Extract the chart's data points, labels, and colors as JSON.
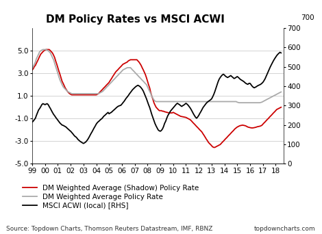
{
  "title": "DM Policy Rates vs MSCI ACWI",
  "source_text": "Source: Topdown Charts, Thomson Reuters Datastream, IMF, RBNZ",
  "watermark": "topdowncharts.com",
  "ylim_left": [
    -5.0,
    7.0
  ],
  "ylim_right": [
    0,
    700
  ],
  "yticks_left": [
    -5.0,
    -3.0,
    -1.0,
    1.0,
    3.0,
    5.0
  ],
  "yticks_right": [
    0,
    100,
    200,
    300,
    400,
    500,
    600,
    700
  ],
  "xtick_labels": [
    "99",
    "00",
    "01",
    "02",
    "03",
    "04",
    "05",
    "06",
    "07",
    "08",
    "09",
    "10",
    "11",
    "12",
    "13",
    "14",
    "15",
    "16",
    "17",
    "18"
  ],
  "legend": [
    {
      "label": "DM Weighted Average (Shadow) Policy Rate",
      "color": "#cc0000",
      "lw": 1.3
    },
    {
      "label": "DM Weighted Average Policy Rate",
      "color": "#aaaaaa",
      "lw": 1.3
    },
    {
      "label": "MSCI ACWI (local) [RHS]",
      "color": "#000000",
      "lw": 1.3
    }
  ],
  "background_color": "#ffffff",
  "grid_color": "#cccccc",
  "title_fontsize": 11,
  "tick_fontsize": 7.5,
  "legend_fontsize": 7.5,
  "source_fontsize": 6.5,
  "shadow_rate_x": [
    1999.0,
    1999.08,
    1999.17,
    1999.25,
    1999.33,
    1999.42,
    1999.5,
    1999.58,
    1999.67,
    1999.75,
    1999.83,
    1999.92,
    2000.0,
    2000.08,
    2000.17,
    2000.25,
    2000.33,
    2000.42,
    2000.5,
    2000.58,
    2000.67,
    2000.75,
    2000.83,
    2000.92,
    2001.0,
    2001.08,
    2001.17,
    2001.25,
    2001.33,
    2001.42,
    2001.5,
    2001.58,
    2001.67,
    2001.75,
    2001.83,
    2001.92,
    2002.0,
    2002.08,
    2002.17,
    2002.25,
    2002.33,
    2002.42,
    2002.5,
    2002.58,
    2002.67,
    2002.75,
    2002.83,
    2002.92,
    2003.0,
    2003.08,
    2003.17,
    2003.25,
    2003.33,
    2003.42,
    2003.5,
    2003.58,
    2003.67,
    2003.75,
    2003.83,
    2003.92,
    2004.0,
    2004.08,
    2004.17,
    2004.25,
    2004.33,
    2004.42,
    2004.5,
    2004.58,
    2004.67,
    2004.75,
    2004.83,
    2004.92,
    2005.0,
    2005.08,
    2005.17,
    2005.25,
    2005.33,
    2005.42,
    2005.5,
    2005.58,
    2005.67,
    2005.75,
    2005.83,
    2005.92,
    2006.0,
    2006.08,
    2006.17,
    2006.25,
    2006.33,
    2006.42,
    2006.5,
    2006.58,
    2006.67,
    2006.75,
    2006.83,
    2006.92,
    2007.0,
    2007.08,
    2007.17,
    2007.25,
    2007.33,
    2007.42,
    2007.5,
    2007.58,
    2007.67,
    2007.75,
    2007.83,
    2007.92,
    2008.0,
    2008.08,
    2008.17,
    2008.25,
    2008.33,
    2008.42,
    2008.5,
    2008.58,
    2008.67,
    2008.75,
    2008.83,
    2008.92,
    2009.0,
    2009.08,
    2009.17,
    2009.25,
    2009.33,
    2009.42,
    2009.5,
    2009.58,
    2009.67,
    2009.75,
    2009.83,
    2009.92,
    2010.0,
    2010.08,
    2010.17,
    2010.25,
    2010.33,
    2010.42,
    2010.5,
    2010.58,
    2010.67,
    2010.75,
    2010.83,
    2010.92,
    2011.0,
    2011.08,
    2011.17,
    2011.25,
    2011.33,
    2011.42,
    2011.5,
    2011.58,
    2011.67,
    2011.75,
    2011.83,
    2011.92,
    2012.0,
    2012.08,
    2012.17,
    2012.25,
    2012.33,
    2012.42,
    2012.5,
    2012.58,
    2012.67,
    2012.75,
    2012.83,
    2012.92,
    2013.0,
    2013.08,
    2013.17,
    2013.25,
    2013.33,
    2013.42,
    2013.5,
    2013.58,
    2013.67,
    2013.75,
    2013.83,
    2013.92,
    2014.0,
    2014.08,
    2014.17,
    2014.25,
    2014.33,
    2014.42,
    2014.5,
    2014.58,
    2014.67,
    2014.75,
    2014.83,
    2014.92,
    2015.0,
    2015.08,
    2015.17,
    2015.25,
    2015.33,
    2015.42,
    2015.5,
    2015.58,
    2015.67,
    2015.75,
    2015.83,
    2015.92,
    2016.0,
    2016.08,
    2016.17,
    2016.25,
    2016.33,
    2016.42,
    2016.5,
    2016.58,
    2016.67,
    2016.75,
    2016.83,
    2016.92,
    2017.0,
    2017.08,
    2017.17,
    2017.25,
    2017.33,
    2017.42,
    2017.5,
    2017.58,
    2017.67,
    2017.75,
    2017.83,
    2017.92,
    2018.0,
    2018.08,
    2018.17,
    2018.25,
    2018.33,
    2018.42
  ],
  "shadow_rate_y": [
    3.3,
    3.4,
    3.6,
    3.7,
    3.9,
    4.1,
    4.3,
    4.5,
    4.7,
    4.8,
    4.9,
    5.0,
    5.05,
    5.1,
    5.1,
    5.1,
    5.1,
    5.0,
    4.9,
    4.8,
    4.6,
    4.4,
    4.1,
    3.8,
    3.5,
    3.2,
    2.9,
    2.6,
    2.3,
    2.1,
    1.9,
    1.7,
    1.55,
    1.4,
    1.3,
    1.2,
    1.15,
    1.1,
    1.1,
    1.1,
    1.1,
    1.1,
    1.1,
    1.1,
    1.1,
    1.1,
    1.1,
    1.1,
    1.1,
    1.1,
    1.1,
    1.1,
    1.1,
    1.1,
    1.1,
    1.1,
    1.1,
    1.1,
    1.1,
    1.1,
    1.1,
    1.15,
    1.2,
    1.3,
    1.4,
    1.5,
    1.6,
    1.7,
    1.8,
    1.9,
    2.0,
    2.1,
    2.2,
    2.35,
    2.5,
    2.65,
    2.8,
    2.95,
    3.1,
    3.2,
    3.3,
    3.4,
    3.5,
    3.6,
    3.7,
    3.8,
    3.85,
    3.9,
    3.95,
    4.0,
    4.1,
    4.15,
    4.2,
    4.2,
    4.2,
    4.2,
    4.2,
    4.2,
    4.2,
    4.1,
    4.0,
    3.85,
    3.7,
    3.5,
    3.3,
    3.1,
    2.9,
    2.6,
    2.3,
    2.0,
    1.7,
    1.3,
    1.0,
    0.7,
    0.4,
    0.2,
    0.0,
    -0.1,
    -0.2,
    -0.3,
    -0.3,
    -0.3,
    -0.35,
    -0.35,
    -0.4,
    -0.42,
    -0.45,
    -0.47,
    -0.5,
    -0.5,
    -0.5,
    -0.5,
    -0.45,
    -0.5,
    -0.55,
    -0.6,
    -0.65,
    -0.7,
    -0.75,
    -0.8,
    -0.82,
    -0.84,
    -0.86,
    -0.88,
    -0.9,
    -0.95,
    -1.0,
    -1.05,
    -1.1,
    -1.2,
    -1.3,
    -1.4,
    -1.5,
    -1.6,
    -1.7,
    -1.8,
    -1.9,
    -2.0,
    -2.1,
    -2.2,
    -2.35,
    -2.5,
    -2.65,
    -2.8,
    -2.95,
    -3.1,
    -3.2,
    -3.3,
    -3.4,
    -3.5,
    -3.55,
    -3.55,
    -3.5,
    -3.45,
    -3.4,
    -3.35,
    -3.3,
    -3.2,
    -3.1,
    -3.0,
    -2.9,
    -2.8,
    -2.7,
    -2.6,
    -2.5,
    -2.4,
    -2.3,
    -2.2,
    -2.1,
    -2.0,
    -1.9,
    -1.82,
    -1.75,
    -1.7,
    -1.65,
    -1.62,
    -1.6,
    -1.58,
    -1.6,
    -1.62,
    -1.65,
    -1.7,
    -1.75,
    -1.78,
    -1.8,
    -1.82,
    -1.83,
    -1.82,
    -1.8,
    -1.78,
    -1.75,
    -1.72,
    -1.7,
    -1.68,
    -1.65,
    -1.6,
    -1.5,
    -1.4,
    -1.3,
    -1.2,
    -1.1,
    -1.0,
    -0.9,
    -0.8,
    -0.7,
    -0.6,
    -0.5,
    -0.4,
    -0.3,
    -0.2,
    -0.15,
    -0.1,
    -0.05,
    0.0
  ],
  "policy_rate_x": [
    1999.0,
    1999.08,
    1999.17,
    1999.25,
    1999.33,
    1999.42,
    1999.5,
    1999.58,
    1999.67,
    1999.75,
    1999.83,
    1999.92,
    2000.0,
    2000.08,
    2000.17,
    2000.25,
    2000.33,
    2000.42,
    2000.5,
    2000.58,
    2000.67,
    2000.75,
    2000.83,
    2000.92,
    2001.0,
    2001.08,
    2001.17,
    2001.25,
    2001.33,
    2001.42,
    2001.5,
    2001.58,
    2001.67,
    2001.75,
    2001.83,
    2001.92,
    2002.0,
    2002.08,
    2002.17,
    2002.25,
    2002.33,
    2002.42,
    2002.5,
    2002.58,
    2002.67,
    2002.75,
    2002.83,
    2002.92,
    2003.0,
    2003.08,
    2003.17,
    2003.25,
    2003.33,
    2003.42,
    2003.5,
    2003.58,
    2003.67,
    2003.75,
    2003.83,
    2003.92,
    2004.0,
    2004.08,
    2004.17,
    2004.25,
    2004.33,
    2004.42,
    2004.5,
    2004.58,
    2004.67,
    2004.75,
    2004.83,
    2004.92,
    2005.0,
    2005.08,
    2005.17,
    2005.25,
    2005.33,
    2005.42,
    2005.5,
    2005.58,
    2005.67,
    2005.75,
    2005.83,
    2005.92,
    2006.0,
    2006.08,
    2006.17,
    2006.25,
    2006.33,
    2006.42,
    2006.5,
    2006.58,
    2006.67,
    2006.75,
    2006.83,
    2006.92,
    2007.0,
    2007.08,
    2007.17,
    2007.25,
    2007.33,
    2007.42,
    2007.5,
    2007.58,
    2007.67,
    2007.75,
    2007.83,
    2007.92,
    2008.0,
    2008.08,
    2008.17,
    2008.25,
    2008.33,
    2008.42,
    2008.5,
    2008.58,
    2008.67,
    2008.75,
    2008.83,
    2008.92,
    2009.0,
    2009.08,
    2009.17,
    2009.25,
    2009.33,
    2009.42,
    2009.5,
    2009.58,
    2009.67,
    2009.75,
    2009.83,
    2009.92,
    2010.0,
    2010.08,
    2010.17,
    2010.25,
    2010.33,
    2010.42,
    2010.5,
    2010.58,
    2010.67,
    2010.75,
    2010.83,
    2010.92,
    2011.0,
    2011.08,
    2011.17,
    2011.25,
    2011.33,
    2011.42,
    2011.5,
    2011.58,
    2011.67,
    2011.75,
    2011.83,
    2011.92,
    2012.0,
    2012.08,
    2012.17,
    2012.25,
    2012.33,
    2012.42,
    2012.5,
    2012.58,
    2012.67,
    2012.75,
    2012.83,
    2012.92,
    2013.0,
    2013.08,
    2013.17,
    2013.25,
    2013.33,
    2013.42,
    2013.5,
    2013.58,
    2013.67,
    2013.75,
    2013.83,
    2013.92,
    2014.0,
    2014.08,
    2014.17,
    2014.25,
    2014.33,
    2014.42,
    2014.5,
    2014.58,
    2014.67,
    2014.75,
    2014.83,
    2014.92,
    2015.0,
    2015.08,
    2015.17,
    2015.25,
    2015.33,
    2015.42,
    2015.5,
    2015.58,
    2015.67,
    2015.75,
    2015.83,
    2015.92,
    2016.0,
    2016.08,
    2016.17,
    2016.25,
    2016.33,
    2016.42,
    2016.5,
    2016.58,
    2016.67,
    2016.75,
    2016.83,
    2016.92,
    2017.0,
    2017.08,
    2017.17,
    2017.25,
    2017.33,
    2017.42,
    2017.5,
    2017.58,
    2017.67,
    2017.75,
    2017.83,
    2017.92,
    2018.0,
    2018.08,
    2018.17,
    2018.25,
    2018.33,
    2018.42
  ],
  "policy_rate_y": [
    3.4,
    3.6,
    3.8,
    4.0,
    4.3,
    4.5,
    4.7,
    4.9,
    5.0,
    5.05,
    5.1,
    5.1,
    5.1,
    5.1,
    5.05,
    5.0,
    4.9,
    4.8,
    4.6,
    4.4,
    4.2,
    3.9,
    3.6,
    3.3,
    3.0,
    2.7,
    2.4,
    2.2,
    2.0,
    1.8,
    1.7,
    1.6,
    1.5,
    1.4,
    1.35,
    1.3,
    1.25,
    1.2,
    1.2,
    1.2,
    1.2,
    1.2,
    1.2,
    1.2,
    1.2,
    1.2,
    1.2,
    1.2,
    1.2,
    1.2,
    1.2,
    1.2,
    1.2,
    1.2,
    1.2,
    1.2,
    1.2,
    1.2,
    1.2,
    1.2,
    1.2,
    1.2,
    1.2,
    1.25,
    1.3,
    1.35,
    1.4,
    1.5,
    1.6,
    1.7,
    1.8,
    1.9,
    2.0,
    2.1,
    2.2,
    2.3,
    2.4,
    2.5,
    2.6,
    2.7,
    2.8,
    2.9,
    3.0,
    3.1,
    3.2,
    3.3,
    3.35,
    3.4,
    3.45,
    3.5,
    3.5,
    3.5,
    3.5,
    3.4,
    3.3,
    3.2,
    3.1,
    3.0,
    2.9,
    2.8,
    2.7,
    2.6,
    2.5,
    2.4,
    2.3,
    2.2,
    2.1,
    2.0,
    1.8,
    1.6,
    1.4,
    1.2,
    1.0,
    0.8,
    0.65,
    0.55,
    0.5,
    0.5,
    0.5,
    0.5,
    0.5,
    0.5,
    0.5,
    0.5,
    0.5,
    0.5,
    0.5,
    0.5,
    0.5,
    0.5,
    0.5,
    0.5,
    0.5,
    0.5,
    0.5,
    0.5,
    0.5,
    0.5,
    0.5,
    0.5,
    0.5,
    0.5,
    0.5,
    0.5,
    0.5,
    0.5,
    0.5,
    0.5,
    0.5,
    0.5,
    0.5,
    0.5,
    0.5,
    0.5,
    0.5,
    0.5,
    0.5,
    0.5,
    0.5,
    0.5,
    0.5,
    0.5,
    0.5,
    0.5,
    0.5,
    0.5,
    0.5,
    0.5,
    0.5,
    0.5,
    0.5,
    0.5,
    0.5,
    0.5,
    0.5,
    0.5,
    0.5,
    0.5,
    0.5,
    0.5,
    0.5,
    0.5,
    0.5,
    0.5,
    0.5,
    0.5,
    0.5,
    0.5,
    0.5,
    0.5,
    0.5,
    0.5,
    0.45,
    0.42,
    0.4,
    0.4,
    0.4,
    0.4,
    0.4,
    0.4,
    0.4,
    0.4,
    0.4,
    0.4,
    0.4,
    0.4,
    0.4,
    0.4,
    0.4,
    0.4,
    0.4,
    0.4,
    0.4,
    0.4,
    0.42,
    0.45,
    0.5,
    0.55,
    0.6,
    0.65,
    0.7,
    0.75,
    0.8,
    0.85,
    0.9,
    0.95,
    1.0,
    1.05,
    1.1,
    1.15,
    1.2,
    1.25,
    1.3,
    1.35
  ],
  "msci_x": [
    1999.0,
    1999.08,
    1999.17,
    1999.25,
    1999.33,
    1999.42,
    1999.5,
    1999.58,
    1999.67,
    1999.75,
    1999.83,
    1999.92,
    2000.0,
    2000.08,
    2000.17,
    2000.25,
    2000.33,
    2000.42,
    2000.5,
    2000.58,
    2000.67,
    2000.75,
    2000.83,
    2000.92,
    2001.0,
    2001.08,
    2001.17,
    2001.25,
    2001.33,
    2001.42,
    2001.5,
    2001.58,
    2001.67,
    2001.75,
    2001.83,
    2001.92,
    2002.0,
    2002.08,
    2002.17,
    2002.25,
    2002.33,
    2002.42,
    2002.5,
    2002.58,
    2002.67,
    2002.75,
    2002.83,
    2002.92,
    2003.0,
    2003.08,
    2003.17,
    2003.25,
    2003.33,
    2003.42,
    2003.5,
    2003.58,
    2003.67,
    2003.75,
    2003.83,
    2003.92,
    2004.0,
    2004.08,
    2004.17,
    2004.25,
    2004.33,
    2004.42,
    2004.5,
    2004.58,
    2004.67,
    2004.75,
    2004.83,
    2004.92,
    2005.0,
    2005.08,
    2005.17,
    2005.25,
    2005.33,
    2005.42,
    2005.5,
    2005.58,
    2005.67,
    2005.75,
    2005.83,
    2005.92,
    2006.0,
    2006.08,
    2006.17,
    2006.25,
    2006.33,
    2006.42,
    2006.5,
    2006.58,
    2006.67,
    2006.75,
    2006.83,
    2006.92,
    2007.0,
    2007.08,
    2007.17,
    2007.25,
    2007.33,
    2007.42,
    2007.5,
    2007.58,
    2007.67,
    2007.75,
    2007.83,
    2007.92,
    2008.0,
    2008.08,
    2008.17,
    2008.25,
    2008.33,
    2008.42,
    2008.5,
    2008.58,
    2008.67,
    2008.75,
    2008.83,
    2008.92,
    2009.0,
    2009.08,
    2009.17,
    2009.25,
    2009.33,
    2009.42,
    2009.5,
    2009.58,
    2009.67,
    2009.75,
    2009.83,
    2009.92,
    2010.0,
    2010.08,
    2010.17,
    2010.25,
    2010.33,
    2010.42,
    2010.5,
    2010.58,
    2010.67,
    2010.75,
    2010.83,
    2010.92,
    2011.0,
    2011.08,
    2011.17,
    2011.25,
    2011.33,
    2011.42,
    2011.5,
    2011.58,
    2011.67,
    2011.75,
    2011.83,
    2011.92,
    2012.0,
    2012.08,
    2012.17,
    2012.25,
    2012.33,
    2012.42,
    2012.5,
    2012.58,
    2012.67,
    2012.75,
    2012.83,
    2012.92,
    2013.0,
    2013.08,
    2013.17,
    2013.25,
    2013.33,
    2013.42,
    2013.5,
    2013.58,
    2013.67,
    2013.75,
    2013.83,
    2013.92,
    2014.0,
    2014.08,
    2014.17,
    2014.25,
    2014.33,
    2014.42,
    2014.5,
    2014.58,
    2014.67,
    2014.75,
    2014.83,
    2014.92,
    2015.0,
    2015.08,
    2015.17,
    2015.25,
    2015.33,
    2015.42,
    2015.5,
    2015.58,
    2015.67,
    2015.75,
    2015.83,
    2015.92,
    2016.0,
    2016.08,
    2016.17,
    2016.25,
    2016.33,
    2016.42,
    2016.5,
    2016.58,
    2016.67,
    2016.75,
    2016.83,
    2016.92,
    2017.0,
    2017.08,
    2017.17,
    2017.25,
    2017.33,
    2017.42,
    2017.5,
    2017.58,
    2017.67,
    2017.75,
    2017.83,
    2017.92,
    2018.0,
    2018.08,
    2018.17,
    2018.25,
    2018.33,
    2018.42
  ],
  "msci_y": [
    215,
    220,
    228,
    235,
    250,
    265,
    278,
    285,
    295,
    305,
    310,
    308,
    305,
    308,
    310,
    305,
    295,
    285,
    275,
    265,
    255,
    248,
    240,
    232,
    225,
    218,
    210,
    205,
    200,
    198,
    195,
    192,
    188,
    182,
    178,
    172,
    168,
    162,
    155,
    148,
    142,
    138,
    132,
    125,
    120,
    115,
    112,
    108,
    105,
    108,
    112,
    118,
    125,
    135,
    145,
    155,
    165,
    175,
    185,
    195,
    205,
    212,
    218,
    222,
    228,
    232,
    238,
    245,
    250,
    255,
    260,
    265,
    258,
    262,
    265,
    270,
    275,
    280,
    285,
    290,
    295,
    298,
    300,
    302,
    308,
    315,
    322,
    330,
    338,
    345,
    352,
    360,
    368,
    375,
    382,
    388,
    393,
    398,
    402,
    405,
    402,
    398,
    392,
    385,
    375,
    362,
    350,
    335,
    320,
    305,
    290,
    272,
    255,
    238,
    222,
    208,
    195,
    185,
    175,
    170,
    168,
    172,
    180,
    192,
    208,
    220,
    235,
    248,
    258,
    268,
    275,
    282,
    288,
    295,
    302,
    308,
    312,
    308,
    305,
    300,
    296,
    300,
    303,
    308,
    312,
    308,
    302,
    295,
    288,
    278,
    268,
    258,
    248,
    240,
    235,
    242,
    250,
    260,
    270,
    280,
    290,
    298,
    305,
    312,
    318,
    322,
    326,
    330,
    335,
    345,
    358,
    372,
    388,
    405,
    422,
    435,
    445,
    452,
    458,
    462,
    458,
    452,
    448,
    445,
    448,
    452,
    455,
    450,
    445,
    440,
    442,
    446,
    450,
    446,
    440,
    435,
    432,
    428,
    425,
    420,
    415,
    412,
    410,
    415,
    415,
    408,
    400,
    395,
    392,
    395,
    398,
    402,
    405,
    408,
    410,
    415,
    420,
    428,
    438,
    450,
    462,
    475,
    488,
    500,
    512,
    522,
    532,
    542,
    550,
    558,
    565,
    570,
    575,
    572
  ]
}
